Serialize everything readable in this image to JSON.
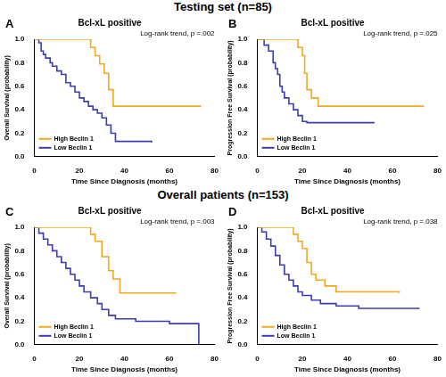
{
  "sections": [
    "Testing set (n=85)",
    "Overall patients (n=153)"
  ],
  "chart_data": [
    {
      "type": "step",
      "panel": "A",
      "title": "Bcl-xL positive",
      "annotation": "Log-rank trend, p =.002",
      "x_label": "Time Since Diagnosis (months)",
      "y_label": "Overall Survival (probability)",
      "xlim": [
        0,
        80
      ],
      "xticks": [
        0,
        20,
        40,
        60,
        80
      ],
      "ylim": [
        0,
        1
      ],
      "yticks": [
        {
          "value": 0,
          "label": "0.0"
        },
        0.2,
        0.4,
        0.6,
        0.8,
        {
          "value": 1,
          "label": "1.0"
        }
      ],
      "grid": false,
      "legend": "lower left",
      "series": [
        {
          "name": "High Beclin 1",
          "color": "#f4a81d",
          "x": [
            0,
            25,
            27,
            29,
            31,
            33,
            35,
            74
          ],
          "values": [
            1.0,
            0.93,
            0.86,
            0.79,
            0.71,
            0.57,
            0.43,
            0.43
          ]
        },
        {
          "name": "Low Beclin 1",
          "color": "#3c3cb4",
          "x": [
            0,
            2,
            3,
            4,
            5,
            7,
            8,
            10,
            12,
            14,
            16,
            18,
            20,
            22,
            24,
            26,
            28,
            30,
            32,
            34,
            36,
            52
          ],
          "values": [
            1.0,
            0.97,
            0.9,
            0.87,
            0.84,
            0.8,
            0.77,
            0.73,
            0.7,
            0.63,
            0.6,
            0.55,
            0.5,
            0.47,
            0.43,
            0.4,
            0.37,
            0.33,
            0.27,
            0.2,
            0.13,
            0.12
          ]
        }
      ]
    },
    {
      "type": "step",
      "panel": "B",
      "title": "Bcl-xL positive",
      "annotation": "Log-rank trend, p =.025",
      "x_label": "Time Since Diagnosis (months)",
      "y_label": "Progression Free Survival (probability)",
      "xlim": [
        0,
        80
      ],
      "xticks": [
        0,
        20,
        40,
        60,
        80
      ],
      "ylim": [
        0,
        1
      ],
      "yticks": [
        {
          "value": 0,
          "label": "0.0"
        },
        0.2,
        0.4,
        0.6,
        0.8,
        {
          "value": 1,
          "label": "1.0"
        }
      ],
      "grid": false,
      "legend": "lower left",
      "series": [
        {
          "name": "High Beclin 1",
          "color": "#f4a81d",
          "x": [
            0,
            18,
            20,
            21,
            22,
            24,
            27,
            74
          ],
          "values": [
            1.0,
            0.93,
            0.86,
            0.71,
            0.57,
            0.5,
            0.43,
            0.43
          ]
        },
        {
          "name": "Low Beclin 1",
          "color": "#3c3cb4",
          "x": [
            0,
            3,
            5,
            7,
            8,
            9,
            10,
            11,
            12,
            14,
            16,
            18,
            20,
            22,
            52
          ],
          "values": [
            1.0,
            0.95,
            0.9,
            0.8,
            0.75,
            0.7,
            0.6,
            0.55,
            0.5,
            0.45,
            0.4,
            0.35,
            0.3,
            0.29,
            0.29
          ]
        }
      ]
    },
    {
      "type": "step",
      "panel": "C",
      "title": "Bcl-xL positive",
      "annotation": "Log-rank trend, p =.003",
      "x_label": "Time Since Diagnosis (months)",
      "y_label": "Overall Survival (probability)",
      "xlim": [
        0,
        80
      ],
      "xticks": [
        0,
        20,
        40,
        60,
        80
      ],
      "ylim": [
        0,
        1
      ],
      "yticks": [
        {
          "value": 0,
          "label": "0.0"
        },
        0.2,
        0.4,
        0.6,
        0.8,
        {
          "value": 1,
          "label": "1.0"
        }
      ],
      "grid": false,
      "legend": "lower left",
      "series": [
        {
          "name": "High Beclin 1",
          "color": "#f4a81d",
          "x": [
            0,
            25,
            27,
            30,
            33,
            35,
            38,
            63
          ],
          "values": [
            1.0,
            0.94,
            0.88,
            0.75,
            0.63,
            0.56,
            0.44,
            0.44
          ]
        },
        {
          "name": "Low Beclin 1",
          "color": "#3c3cb4",
          "x": [
            0,
            2,
            4,
            6,
            8,
            10,
            12,
            14,
            16,
            18,
            20,
            22,
            25,
            28,
            30,
            33,
            36,
            45,
            60,
            73
          ],
          "values": [
            1.0,
            0.95,
            0.9,
            0.85,
            0.8,
            0.75,
            0.7,
            0.65,
            0.6,
            0.55,
            0.5,
            0.45,
            0.4,
            0.35,
            0.3,
            0.25,
            0.22,
            0.2,
            0.18,
            0.0
          ]
        }
      ]
    },
    {
      "type": "step",
      "panel": "D",
      "title": "Bcl-xL positive",
      "annotation": "Log-rank trend, p =.038",
      "x_label": "Time Since Diagnosis (months)",
      "y_label": "Progression Free Survival (probability)",
      "xlim": [
        0,
        80
      ],
      "xticks": [
        0,
        20,
        40,
        60,
        80
      ],
      "ylim": [
        0,
        1
      ],
      "yticks": [
        {
          "value": 0,
          "label": "0.0"
        },
        0.2,
        0.4,
        0.6,
        0.8,
        {
          "value": 1,
          "label": "1.0"
        }
      ],
      "grid": false,
      "legend": "lower left",
      "series": [
        {
          "name": "High Beclin 1",
          "color": "#f4a81d",
          "x": [
            0,
            16,
            18,
            20,
            22,
            24,
            26,
            30,
            35,
            63
          ],
          "values": [
            1.0,
            0.94,
            0.88,
            0.82,
            0.7,
            0.6,
            0.55,
            0.5,
            0.45,
            0.44
          ]
        },
        {
          "name": "Low Beclin 1",
          "color": "#3c3cb4",
          "x": [
            0,
            2,
            4,
            6,
            8,
            10,
            12,
            14,
            16,
            18,
            20,
            24,
            28,
            35,
            45,
            72
          ],
          "values": [
            1.0,
            0.96,
            0.9,
            0.84,
            0.76,
            0.68,
            0.6,
            0.55,
            0.5,
            0.45,
            0.42,
            0.38,
            0.35,
            0.33,
            0.31,
            0.31
          ]
        }
      ]
    }
  ]
}
